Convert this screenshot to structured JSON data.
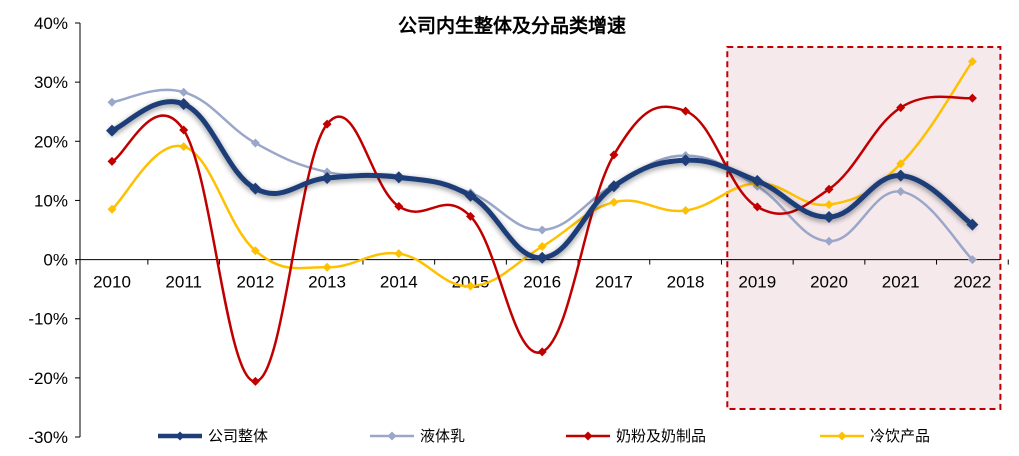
{
  "chart_data": {
    "type": "line",
    "title": "公司内生整体及分品类增速",
    "xlabel": "",
    "ylabel": "",
    "categories": [
      "2010",
      "2011",
      "2012",
      "2013",
      "2014",
      "2015",
      "2016",
      "2017",
      "2018",
      "2019",
      "2020",
      "2021",
      "2022"
    ],
    "ylim": [
      -30,
      40
    ],
    "ytick_labels": [
      "40%",
      "30%",
      "20%",
      "10%",
      "0%",
      "-10%",
      "-20%",
      "-30%"
    ],
    "ytick_values": [
      40,
      30,
      20,
      10,
      0,
      -10,
      -20,
      -30
    ],
    "series": [
      {
        "name": "公司整体",
        "color": "#1f3e78",
        "values": [
          21.8,
          26.3,
          12.0,
          13.8,
          13.9,
          10.8,
          0.3,
          12.4,
          16.8,
          13.3,
          7.2,
          14.2,
          5.9
        ]
      },
      {
        "name": "液体乳",
        "color": "#9aa7c9",
        "values": [
          26.6,
          28.3,
          19.7,
          14.8,
          14.2,
          11.3,
          5.0,
          12.6,
          17.6,
          12.4,
          3.1,
          11.5,
          0.0
        ]
      },
      {
        "name": "奶粉及奶制品",
        "color": "#c00000",
        "values": [
          16.6,
          21.9,
          -20.6,
          22.9,
          9.0,
          7.3,
          -15.6,
          17.7,
          25.1,
          8.9,
          11.9,
          25.7,
          27.3
        ]
      },
      {
        "name": "冷饮产品",
        "color": "#ffc000",
        "values": [
          8.5,
          19.1,
          1.5,
          -1.3,
          1.0,
          -4.5,
          2.2,
          9.7,
          8.3,
          12.9,
          9.3,
          16.2,
          33.5
        ]
      }
    ],
    "grid": false,
    "legend": "bottom",
    "highlight": {
      "from": "2019",
      "to": "2022",
      "border_color": "#c00000",
      "fill_color": "#f5e9ec",
      "style": "dashed"
    }
  }
}
